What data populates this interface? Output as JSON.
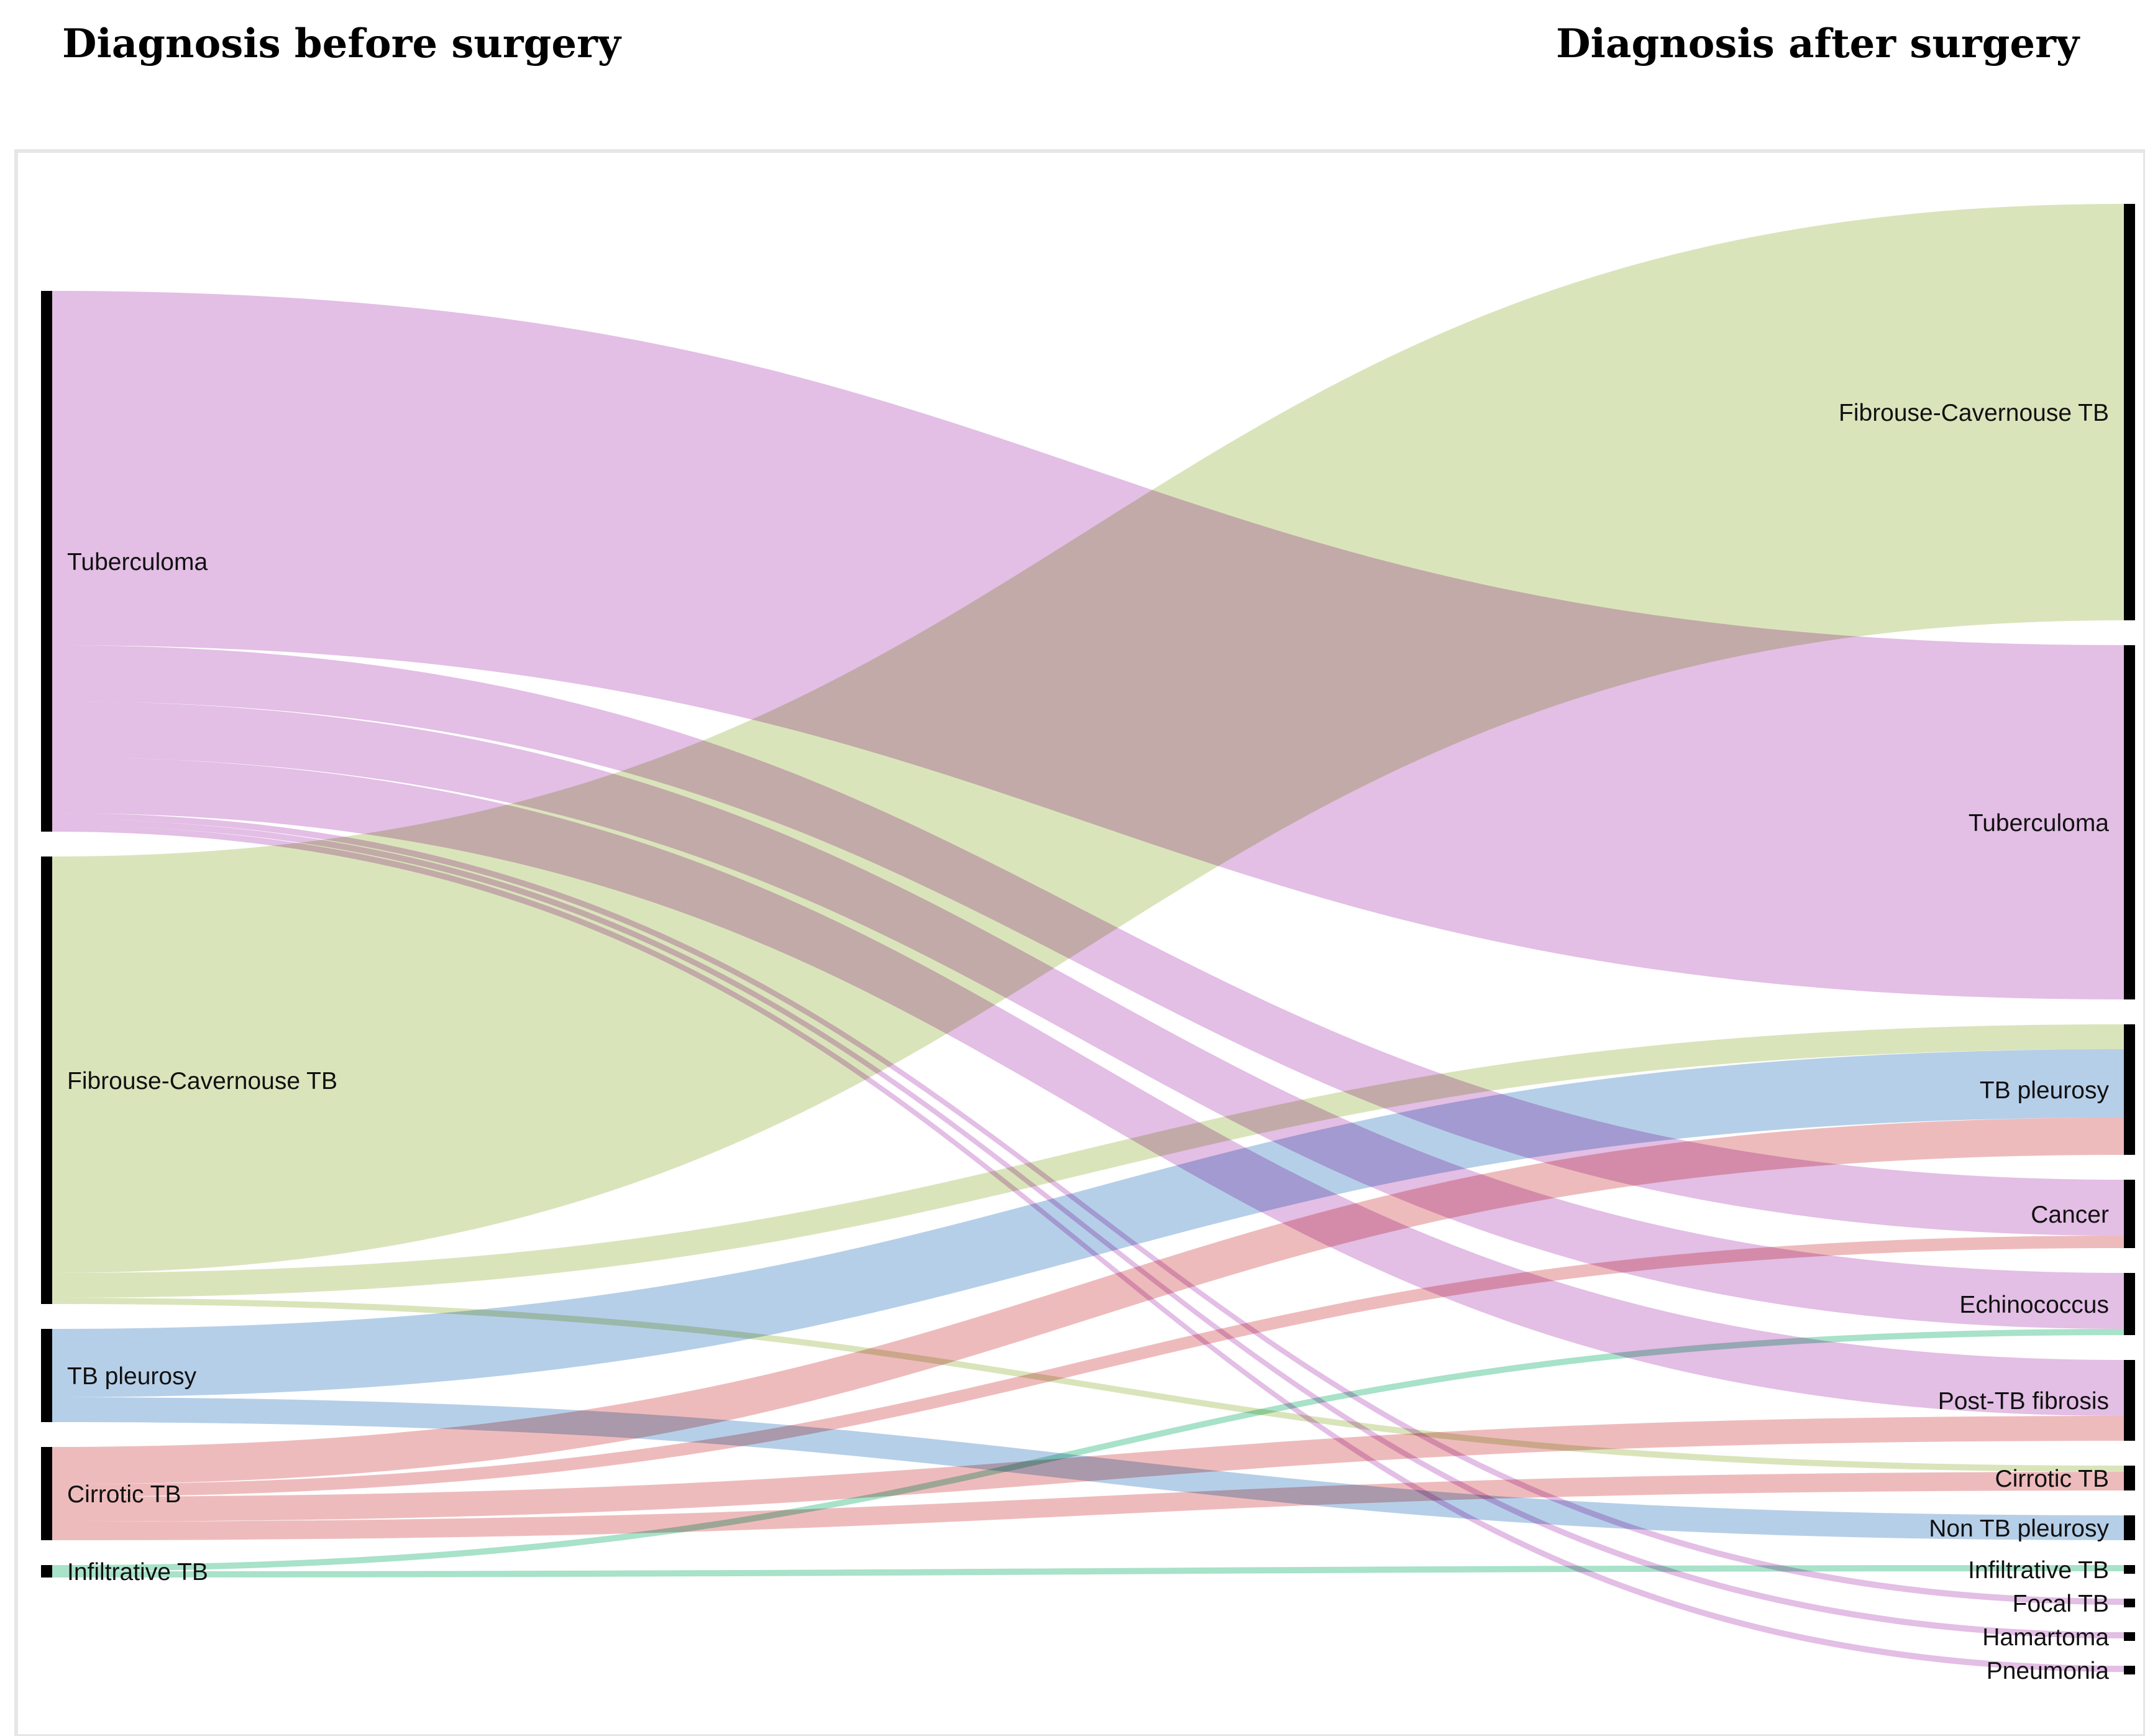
{
  "header": {
    "left_title": "Diagnosis before surgery",
    "right_title": "Diagnosis after surgery"
  },
  "chart_data": {
    "type": "sankey",
    "title": "",
    "source_nodes": [
      {
        "id": "s_tub",
        "label": "Tuberculoma",
        "color": "#d9a8dc"
      },
      {
        "id": "s_fct",
        "label": "Fibrouse-Cavernouse TB",
        "color": "#cddba4"
      },
      {
        "id": "s_tbp",
        "label": "TB pleurosy",
        "color": "#9ebfe0"
      },
      {
        "id": "s_cir",
        "label": "Cirrotic TB",
        "color": "#e8a4a6"
      },
      {
        "id": "s_inf",
        "label": "Infiltrative TB",
        "color": "#8ad8b7"
      }
    ],
    "target_nodes": [
      {
        "id": "t_fct",
        "label": "Fibrouse-Cavernouse TB"
      },
      {
        "id": "t_tub",
        "label": "Tuberculoma"
      },
      {
        "id": "t_tbp",
        "label": "TB pleurosy"
      },
      {
        "id": "t_can",
        "label": "Cancer"
      },
      {
        "id": "t_ech",
        "label": "Echinococcus"
      },
      {
        "id": "t_ptf",
        "label": "Post-TB fibrosis"
      },
      {
        "id": "t_cir",
        "label": "Cirrotic TB"
      },
      {
        "id": "t_ntp",
        "label": "Non TB pleurosy"
      },
      {
        "id": "t_inf",
        "label": "Infiltrative TB"
      },
      {
        "id": "t_foc",
        "label": "Focal TB"
      },
      {
        "id": "t_ham",
        "label": "Hamartoma"
      },
      {
        "id": "t_pne",
        "label": "Pneumonia"
      }
    ],
    "links": [
      {
        "source": "s_tub",
        "target": "t_tub",
        "value": 57
      },
      {
        "source": "s_tub",
        "target": "t_can",
        "value": 9
      },
      {
        "source": "s_tub",
        "target": "t_ech",
        "value": 9
      },
      {
        "source": "s_tub",
        "target": "t_ptf",
        "value": 9
      },
      {
        "source": "s_tub",
        "target": "t_foc",
        "value": 1
      },
      {
        "source": "s_tub",
        "target": "t_ham",
        "value": 1
      },
      {
        "source": "s_tub",
        "target": "t_pne",
        "value": 1
      },
      {
        "source": "s_fct",
        "target": "t_fct",
        "value": 67
      },
      {
        "source": "s_fct",
        "target": "t_tbp",
        "value": 4
      },
      {
        "source": "s_fct",
        "target": "t_cir",
        "value": 1
      },
      {
        "source": "s_tbp",
        "target": "t_tbp",
        "value": 11
      },
      {
        "source": "s_tbp",
        "target": "t_ntp",
        "value": 4
      },
      {
        "source": "s_cir",
        "target": "t_tbp",
        "value": 6
      },
      {
        "source": "s_cir",
        "target": "t_can",
        "value": 2
      },
      {
        "source": "s_cir",
        "target": "t_ptf",
        "value": 4
      },
      {
        "source": "s_cir",
        "target": "t_cir",
        "value": 3
      },
      {
        "source": "s_inf",
        "target": "t_ech",
        "value": 1
      },
      {
        "source": "s_inf",
        "target": "t_inf",
        "value": 1
      }
    ]
  }
}
